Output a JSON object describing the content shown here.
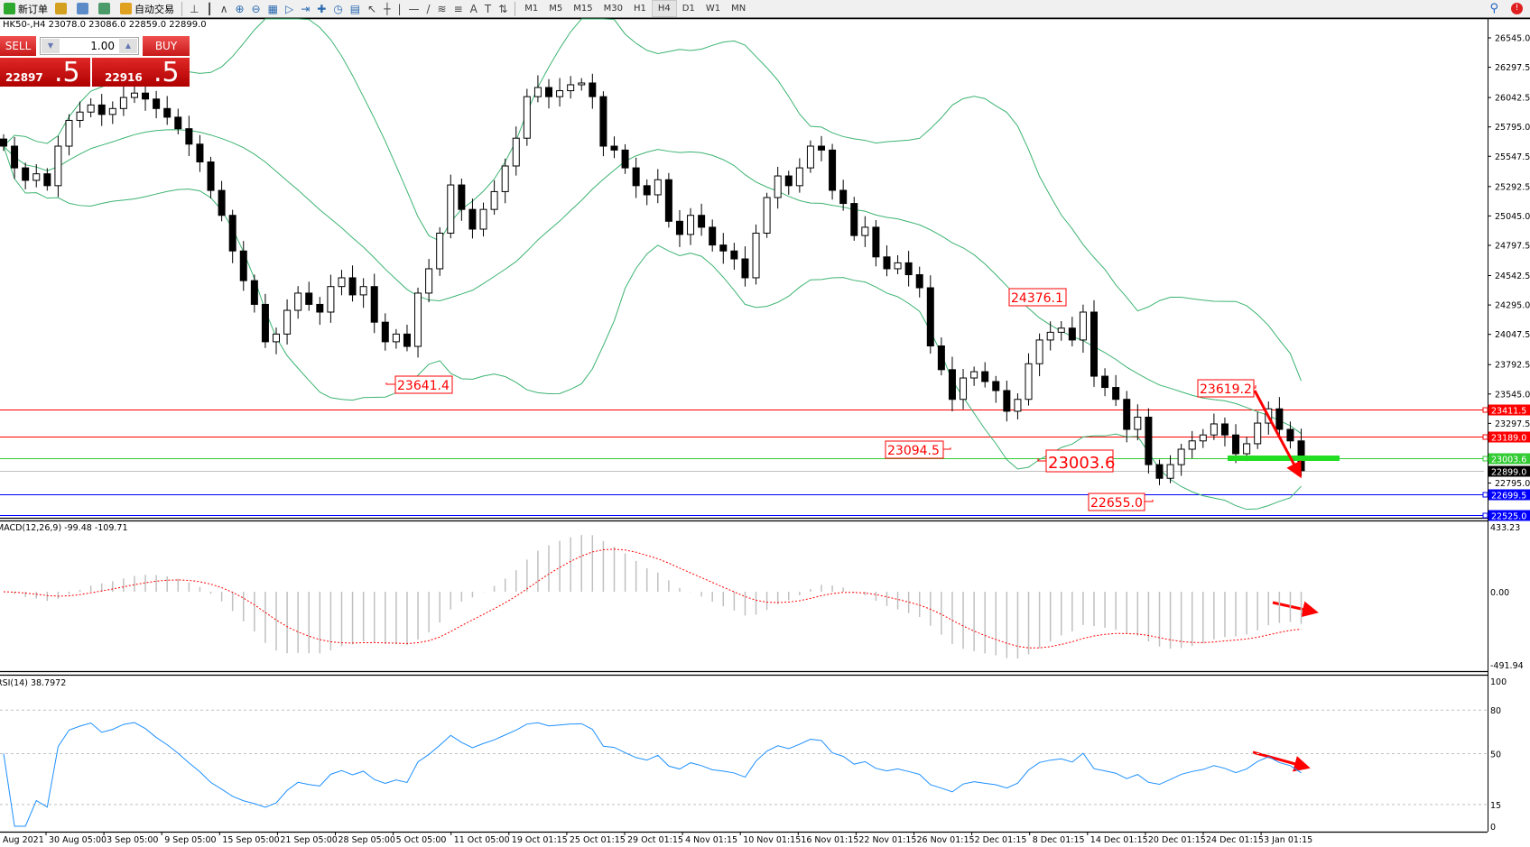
{
  "toolbar": {
    "items": [
      {
        "label": "新订单",
        "icon": "new-order-icon",
        "color": "#2ea82e"
      },
      {
        "label": "",
        "icon": "market-watch-icon",
        "color": "#d4a020"
      },
      {
        "label": "",
        "icon": "cloud-icon",
        "color": "#5a8ac8"
      },
      {
        "label": "",
        "icon": "signal-icon",
        "color": "#4a9a6a"
      },
      {
        "label": "自动交易",
        "icon": "auto-trading-icon",
        "color": "#e0a020"
      }
    ],
    "tools": [
      "bar-chart-icon",
      "candlestick-icon",
      "line-chart-icon",
      "zoom-in-icon",
      "zoom-out-icon",
      "tile-windows-icon",
      "chart-shift-icon",
      "autoscroll-icon",
      "indicators-icon",
      "periods-icon",
      "templates-icon",
      "cursor-icon",
      "crosshair-icon",
      "vertical-line-icon",
      "horizontal-line-icon",
      "trendline-icon",
      "fibonacci-icon",
      "fibo-fan-icon",
      "text-icon",
      "label-icon",
      "arrows-icon"
    ],
    "timeframes": [
      "M1",
      "M5",
      "M15",
      "M30",
      "H1",
      "H4",
      "D1",
      "W1",
      "MN"
    ],
    "active_timeframe": "H4"
  },
  "chart_header": "HK50-,H4  23078.0 23086.0 22859.0 22899.0",
  "trade_panel": {
    "sell_label": "SELL",
    "buy_label": "BUY",
    "lot": "1.00",
    "sell_price_main": "22897",
    "sell_price_frac": ".5",
    "buy_price_main": "22916",
    "buy_price_frac": ".5",
    "color": "#d01c1c"
  },
  "price_axis": {
    "ticks": [
      "26545.0",
      "26297.5",
      "26042.5",
      "25795.0",
      "25547.5",
      "25292.5",
      "25045.0",
      "24797.5",
      "24542.5",
      "24295.0",
      "24047.5",
      "23792.5",
      "23545.0",
      "23297.5",
      "22795.0"
    ],
    "levels": [
      {
        "value": 23411.5,
        "label": "23411.5",
        "color": "#ff0000"
      },
      {
        "value": 23189.0,
        "label": "23189.0",
        "color": "#ff0000"
      },
      {
        "value": 23003.6,
        "label": "23003.6",
        "color": "#33cc33"
      },
      {
        "value": 22899.0,
        "label": "22899.0",
        "color": "#000000",
        "line_color": "#c0c0c0"
      },
      {
        "value": 22699.5,
        "label": "22699.5",
        "color": "#0000ff"
      },
      {
        "value": 22525.0,
        "label": "22525.0",
        "color": "#0000ff"
      }
    ]
  },
  "annotations": [
    {
      "label": "24376.1",
      "value": 24376.1
    },
    {
      "label": "23641.4",
      "value": 23641.4
    },
    {
      "label": "23094.5",
      "value": 23094.5
    },
    {
      "label": "23003.6",
      "value": 23003.6
    },
    {
      "label": "22655.0",
      "value": 22655.0
    },
    {
      "label": "23619.2",
      "value": 23619.2
    }
  ],
  "macd": {
    "label": "MACD(12,26,9) -99.48 -109.71",
    "max": "433.23",
    "zero": "0.00",
    "min": "-491.94"
  },
  "rsi": {
    "label": "RSI(14) 38.7972",
    "levels": [
      "100",
      "80",
      "50",
      "15",
      "0"
    ]
  },
  "time_axis": [
    "Aug 2021",
    "30 Aug 05:00",
    "3 Sep 05:00",
    "9 Sep 05:00",
    "15 Sep 05:00",
    "21 Sep 05:00",
    "28 Sep 05:00",
    "5 Oct 05:00",
    "11 Oct 05:00",
    "19 Oct 01:15",
    "25 Oct 01:15",
    "29 Oct 01:15",
    "4 Nov 01:15",
    "10 Nov 01:15",
    "16 Nov 01:15",
    "22 Nov 01:15",
    "26 Nov 01:15",
    "2 Dec 01:15",
    "8 Dec 01:15",
    "14 Dec 01:15",
    "20 Dec 01:15",
    "24 Dec 01:15",
    "3 Jan 01:15"
  ],
  "chart_data": {
    "type": "candlestick",
    "symbol": "HK50-",
    "timeframe": "H4",
    "ylim": [
      22525.0,
      26545.0
    ],
    "indicators": [
      "Bollinger Bands",
      "MACD(12,26,9)",
      "RSI(14)"
    ],
    "colors": {
      "bands": "#3cb371",
      "macd_hist": "#c0c0c0",
      "macd_signal": "#ff0000",
      "rsi": "#1e90ff"
    },
    "closes": [
      25633,
      25450,
      25345,
      25400,
      25300,
      25633,
      25850,
      25920,
      25980,
      25900,
      25950,
      26043,
      26080,
      26030,
      25950,
      25877,
      25780,
      25650,
      25500,
      25260,
      25050,
      24750,
      24500,
      24300,
      23985,
      24050,
      24250,
      24395,
      24300,
      24235,
      24450,
      24524,
      24380,
      24450,
      24150,
      23985,
      24050,
      23946,
      24395,
      24600,
      24900,
      25306,
      25100,
      24934,
      25100,
      25250,
      25466,
      25700,
      26050,
      26127,
      26050,
      26100,
      26150,
      26165,
      26050,
      25633,
      25600,
      25450,
      25300,
      25223,
      25350,
      25000,
      24889,
      25050,
      24950,
      24800,
      24750,
      24683,
      24524,
      24900,
      25200,
      25382,
      25300,
      25450,
      25633,
      25600,
      25261,
      25150,
      24880,
      24950,
      24700,
      24600,
      24650,
      24550,
      24440,
      23950,
      23750,
      23500,
      23680,
      23733,
      23650,
      23574,
      23400,
      23500,
      23800,
      24000,
      24065,
      24100,
      24000,
      24235,
      23695,
      23600,
      23500,
      23247,
      23350,
      22950,
      22835,
      22950,
      23080,
      23150,
      23200,
      23293,
      23200,
      23042,
      23126,
      23300,
      23420,
      23247,
      23150,
      22899
    ]
  }
}
